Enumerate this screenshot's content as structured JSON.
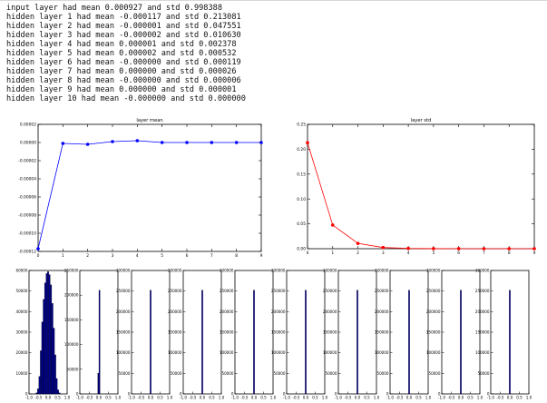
{
  "console_lines": [
    "input layer had mean 0.000927 and std 0.998388",
    "hidden layer 1 had mean -0.000117 and std 0.213081",
    "hidden layer 2 had mean -0.000001 and std 0.047551",
    "hidden layer 3 had mean -0.000002 and std 0.010630",
    "hidden layer 4 had mean 0.000001 and std 0.002378",
    "hidden layer 5 had mean 0.000002 and std 0.000532",
    "hidden layer 6 had mean -0.000000 and std 0.000119",
    "hidden layer 7 had mean 0.000000 and std 0.000026",
    "hidden layer 8 had mean -0.000000 and std 0.000006",
    "hidden layer 9 had mean 0.000000 and std 0.000001",
    "hidden layer 10 had mean -0.000000 and std 0.000000"
  ],
  "chart_data": [
    {
      "type": "line",
      "title": "layer mean",
      "color": "#0000ff",
      "x": [
        0,
        1,
        2,
        3,
        4,
        5,
        6,
        7,
        8,
        9
      ],
      "values": [
        -0.000117,
        -1e-06,
        -2e-06,
        1e-06,
        2e-06,
        0.0,
        0.0,
        0.0,
        0.0,
        0.0
      ],
      "xlim": [
        0,
        9
      ],
      "ylim": [
        -0.00012,
        2e-05
      ],
      "xticks": [
        "0",
        "1",
        "2",
        "3",
        "4",
        "5",
        "6",
        "7",
        "8",
        "9"
      ],
      "yticks": [
        {
          "value": 2e-05,
          "label": "0.00002"
        },
        {
          "value": 0.0,
          "label": "0.00000"
        },
        {
          "value": -2e-05,
          "label": "-0.00002"
        },
        {
          "value": -4e-05,
          "label": "-0.00004"
        },
        {
          "value": -6e-05,
          "label": "-0.00006"
        },
        {
          "value": -8e-05,
          "label": "-0.00008"
        },
        {
          "value": -0.0001,
          "label": "-0.00010"
        },
        {
          "value": -0.00012,
          "label": "-0.00012"
        }
      ]
    },
    {
      "type": "line",
      "title": "layer std",
      "color": "#ff0000",
      "x": [
        0,
        1,
        2,
        3,
        4,
        5,
        6,
        7,
        8,
        9
      ],
      "values": [
        0.213081,
        0.047551,
        0.01063,
        0.002378,
        0.000532,
        0.000119,
        2.6e-05,
        6e-06,
        1e-06,
        0.0
      ],
      "xlim": [
        0,
        9
      ],
      "ylim": [
        0,
        0.25
      ],
      "xticks": [
        "0",
        "1",
        "2",
        "3",
        "4",
        "5",
        "6",
        "7",
        "8",
        "9"
      ],
      "yticks": [
        {
          "value": 0.25,
          "label": "0.25"
        },
        {
          "value": 0.2,
          "label": "0.20"
        },
        {
          "value": 0.15,
          "label": "0.15"
        },
        {
          "value": 0.1,
          "label": "0.10"
        },
        {
          "value": 0.05,
          "label": "0.05"
        },
        {
          "value": 0.0,
          "label": "0.00"
        }
      ]
    },
    {
      "type": "bar",
      "description_kind": "histograms",
      "color": "#00008b",
      "xlim": [
        -1.0,
        1.0
      ],
      "xticks": [
        "-1.0",
        "-0.5",
        "0.0",
        "0.5",
        "1.0"
      ],
      "histograms": [
        {
          "ylim": [
            0,
            60000
          ],
          "yticks": [
            "0",
            "10000",
            "20000",
            "30000",
            "40000",
            "50000",
            "60000"
          ],
          "bins": [
            {
              "center": -0.6,
              "value": 600
            },
            {
              "center": -0.525,
              "value": 2500
            },
            {
              "center": -0.45,
              "value": 8500
            },
            {
              "center": -0.375,
              "value": 21000
            },
            {
              "center": -0.3,
              "value": 35000
            },
            {
              "center": -0.225,
              "value": 46000
            },
            {
              "center": -0.15,
              "value": 54000
            },
            {
              "center": -0.075,
              "value": 58500
            },
            {
              "center": 0.0,
              "value": 59500
            },
            {
              "center": 0.075,
              "value": 58000
            },
            {
              "center": 0.15,
              "value": 53000
            },
            {
              "center": 0.225,
              "value": 44000
            },
            {
              "center": 0.3,
              "value": 32000
            },
            {
              "center": 0.375,
              "value": 19000
            },
            {
              "center": 0.45,
              "value": 7500
            },
            {
              "center": 0.525,
              "value": 2000
            },
            {
              "center": 0.6,
              "value": 500
            }
          ]
        },
        {
          "ylim": [
            0,
            250000
          ],
          "yticks": [
            "0",
            "50000",
            "100000",
            "150000",
            "200000",
            "250000"
          ],
          "bins": [
            {
              "center": -0.03,
              "value": 42000
            },
            {
              "center": 0.03,
              "value": 210000
            }
          ]
        },
        {
          "ylim": [
            0,
            300000
          ],
          "yticks": [
            "0",
            "50000",
            "100000",
            "150000",
            "200000",
            "250000",
            "300000"
          ],
          "bins": [
            {
              "center": 0.0,
              "value": 252000
            }
          ]
        },
        {
          "ylim": [
            0,
            300000
          ],
          "yticks": [
            "0",
            "50000",
            "100000",
            "150000",
            "200000",
            "250000",
            "300000"
          ],
          "bins": [
            {
              "center": 0.0,
              "value": 252000
            }
          ]
        },
        {
          "ylim": [
            0,
            300000
          ],
          "yticks": [
            "0",
            "50000",
            "100000",
            "150000",
            "200000",
            "250000",
            "300000"
          ],
          "bins": [
            {
              "center": 0.0,
              "value": 252000
            }
          ]
        },
        {
          "ylim": [
            0,
            300000
          ],
          "yticks": [
            "0",
            "50000",
            "100000",
            "150000",
            "200000",
            "250000",
            "300000"
          ],
          "bins": [
            {
              "center": 0.0,
              "value": 252000
            }
          ]
        },
        {
          "ylim": [
            0,
            300000
          ],
          "yticks": [
            "0",
            "50000",
            "100000",
            "150000",
            "200000",
            "250000",
            "300000"
          ],
          "bins": [
            {
              "center": 0.0,
              "value": 252000
            }
          ]
        },
        {
          "ylim": [
            0,
            300000
          ],
          "yticks": [
            "0",
            "50000",
            "100000",
            "150000",
            "200000",
            "250000",
            "300000"
          ],
          "bins": [
            {
              "center": 0.0,
              "value": 252000
            }
          ]
        },
        {
          "ylim": [
            0,
            300000
          ],
          "yticks": [
            "0",
            "50000",
            "100000",
            "150000",
            "200000",
            "250000",
            "300000"
          ],
          "bins": [
            {
              "center": 0.0,
              "value": 252000
            }
          ]
        },
        {
          "ylim": [
            0,
            300000
          ],
          "yticks": [
            "0",
            "50000",
            "100000",
            "150000",
            "200000",
            "250000",
            "300000"
          ],
          "bins": [
            {
              "center": 0.0,
              "value": 252000
            }
          ]
        }
      ]
    }
  ]
}
